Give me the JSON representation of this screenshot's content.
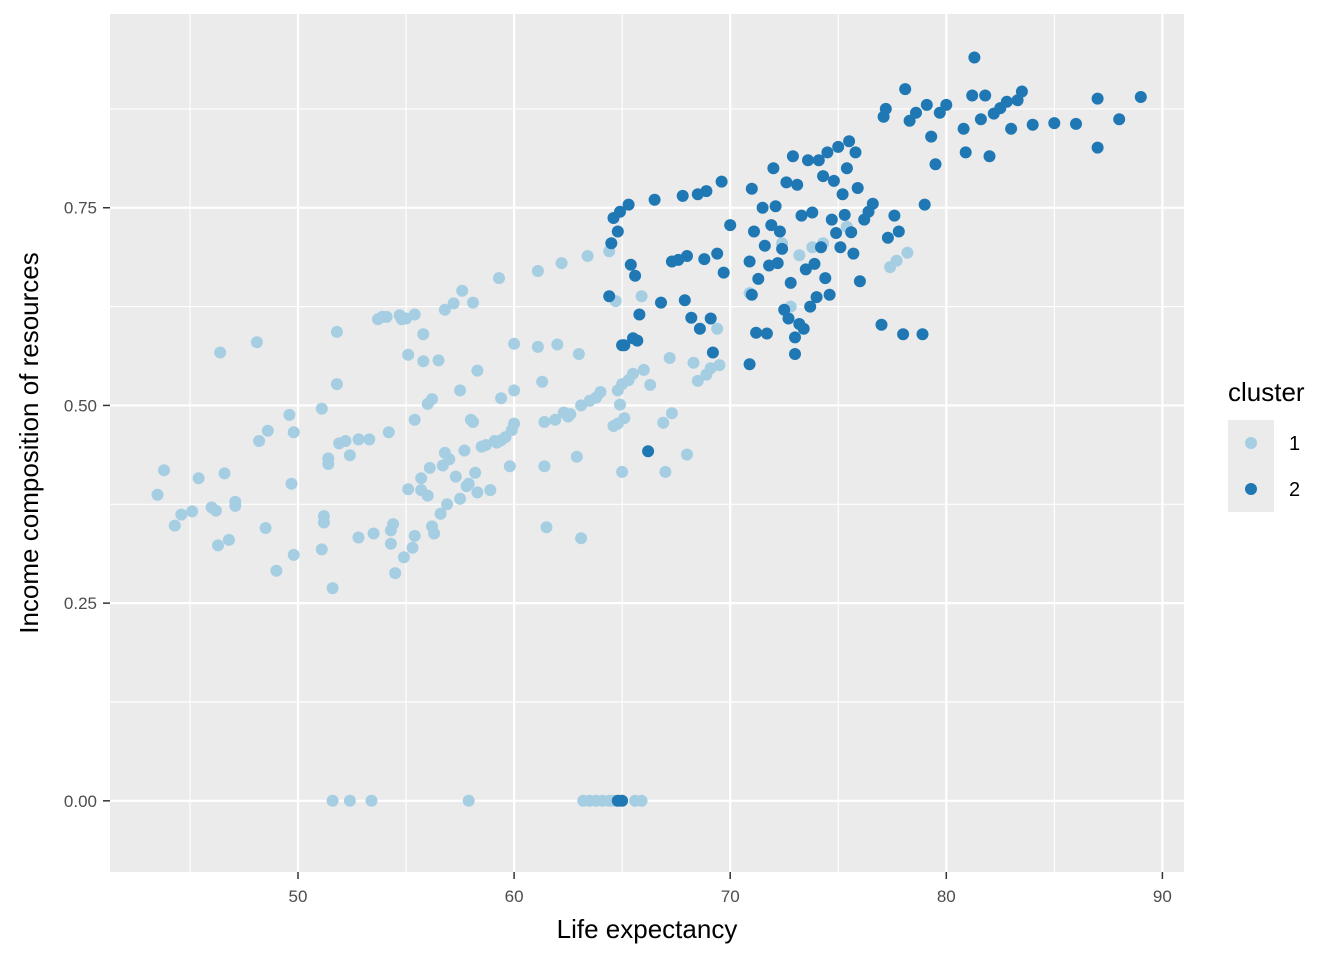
{
  "chart_data": {
    "type": "scatter",
    "title": "",
    "xlabel": "Life expectancy",
    "ylabel": "Income composition of resources",
    "xlim": [
      41.3,
      91.0
    ],
    "ylim": [
      -0.09,
      0.995
    ],
    "x_ticks": [
      50,
      60,
      70,
      80,
      90
    ],
    "x_tick_labels": [
      "50",
      "60",
      "70",
      "80",
      "90"
    ],
    "y_ticks": [
      0.0,
      0.25,
      0.5,
      0.75
    ],
    "y_tick_labels": [
      "0.00",
      "0.25",
      "0.50",
      "0.75"
    ],
    "grid": true,
    "legend": {
      "title": "cluster",
      "position": "right"
    },
    "colors": {
      "panel": "#ebebeb",
      "grid": "#ffffff",
      "cluster_1": "#a6cee3",
      "cluster_2": "#1f78b4"
    },
    "series": [
      {
        "name": "1",
        "color": "#a6cee3",
        "points": [
          [
            43.5,
            0.387
          ],
          [
            43.8,
            0.418
          ],
          [
            44.3,
            0.348
          ],
          [
            44.6,
            0.362
          ],
          [
            45.1,
            0.366
          ],
          [
            45.4,
            0.408
          ],
          [
            46.0,
            0.371
          ],
          [
            46.2,
            0.367
          ],
          [
            46.3,
            0.323
          ],
          [
            46.4,
            0.567
          ],
          [
            46.6,
            0.414
          ],
          [
            46.8,
            0.33
          ],
          [
            47.1,
            0.373
          ],
          [
            47.1,
            0.378
          ],
          [
            48.1,
            0.58
          ],
          [
            48.2,
            0.455
          ],
          [
            48.5,
            0.345
          ],
          [
            48.6,
            0.468
          ],
          [
            49.0,
            0.291
          ],
          [
            49.6,
            0.488
          ],
          [
            49.7,
            0.401
          ],
          [
            49.8,
            0.311
          ],
          [
            49.8,
            0.466
          ],
          [
            51.1,
            0.318
          ],
          [
            51.1,
            0.496
          ],
          [
            51.2,
            0.36
          ],
          [
            51.2,
            0.352
          ],
          [
            51.4,
            0.426
          ],
          [
            51.4,
            0.433
          ],
          [
            51.6,
            0.269
          ],
          [
            51.8,
            0.593
          ],
          [
            51.8,
            0.527
          ],
          [
            51.9,
            0.452
          ],
          [
            52.2,
            0.455
          ],
          [
            52.4,
            0.437
          ],
          [
            52.8,
            0.333
          ],
          [
            52.8,
            0.457
          ],
          [
            53.3,
            0.457
          ],
          [
            53.5,
            0.338
          ],
          [
            53.7,
            0.609
          ],
          [
            53.9,
            0.612
          ],
          [
            54.1,
            0.612
          ],
          [
            54.2,
            0.466
          ],
          [
            54.3,
            0.342
          ],
          [
            54.3,
            0.325
          ],
          [
            54.4,
            0.35
          ],
          [
            54.5,
            0.288
          ],
          [
            54.7,
            0.614
          ],
          [
            54.8,
            0.609
          ],
          [
            54.9,
            0.308
          ],
          [
            55.0,
            0.61
          ],
          [
            55.1,
            0.564
          ],
          [
            55.1,
            0.394
          ],
          [
            55.3,
            0.32
          ],
          [
            55.4,
            0.482
          ],
          [
            55.4,
            0.335
          ],
          [
            55.4,
            0.615
          ],
          [
            55.7,
            0.408
          ],
          [
            55.7,
            0.393
          ],
          [
            55.8,
            0.59
          ],
          [
            55.8,
            0.556
          ],
          [
            56.0,
            0.502
          ],
          [
            56.0,
            0.386
          ],
          [
            56.1,
            0.421
          ],
          [
            56.2,
            0.347
          ],
          [
            56.2,
            0.508
          ],
          [
            56.3,
            0.338
          ],
          [
            56.5,
            0.557
          ],
          [
            56.6,
            0.363
          ],
          [
            56.7,
            0.424
          ],
          [
            56.8,
            0.44
          ],
          [
            56.8,
            0.621
          ],
          [
            56.9,
            0.375
          ],
          [
            57.0,
            0.432
          ],
          [
            57.2,
            0.629
          ],
          [
            57.3,
            0.41
          ],
          [
            57.5,
            0.519
          ],
          [
            57.5,
            0.382
          ],
          [
            57.6,
            0.645
          ],
          [
            57.7,
            0.443
          ],
          [
            57.8,
            0.398
          ],
          [
            57.9,
            0.401
          ],
          [
            58.0,
            0.482
          ],
          [
            58.1,
            0.63
          ],
          [
            58.1,
            0.479
          ],
          [
            58.2,
            0.415
          ],
          [
            58.3,
            0.544
          ],
          [
            58.3,
            0.39
          ],
          [
            58.5,
            0.448
          ],
          [
            58.7,
            0.45
          ],
          [
            58.9,
            0.393
          ],
          [
            59.1,
            0.455
          ],
          [
            59.2,
            0.453
          ],
          [
            59.3,
            0.661
          ],
          [
            59.4,
            0.456
          ],
          [
            59.4,
            0.509
          ],
          [
            59.6,
            0.46
          ],
          [
            59.8,
            0.423
          ],
          [
            59.9,
            0.469
          ],
          [
            60.0,
            0.477
          ],
          [
            60.0,
            0.578
          ],
          [
            60.0,
            0.519
          ],
          [
            61.1,
            0.574
          ],
          [
            61.1,
            0.67
          ],
          [
            61.3,
            0.53
          ],
          [
            61.4,
            0.423
          ],
          [
            61.4,
            0.479
          ],
          [
            61.5,
            0.346
          ],
          [
            61.9,
            0.482
          ],
          [
            62.0,
            0.577
          ],
          [
            62.2,
            0.68
          ],
          [
            62.3,
            0.491
          ],
          [
            62.5,
            0.486
          ],
          [
            62.6,
            0.489
          ],
          [
            62.9,
            0.435
          ],
          [
            63.0,
            0.565
          ],
          [
            63.1,
            0.332
          ],
          [
            63.1,
            0.5
          ],
          [
            63.4,
            0.689
          ],
          [
            63.5,
            0.506
          ],
          [
            63.8,
            0.51
          ],
          [
            64.0,
            0.517
          ],
          [
            64.4,
            0.695
          ],
          [
            64.6,
            0.474
          ],
          [
            64.7,
            0.632
          ],
          [
            64.8,
            0.519
          ],
          [
            64.8,
            0.477
          ],
          [
            64.9,
            0.501
          ],
          [
            65.0,
            0.527
          ],
          [
            65.0,
            0.416
          ],
          [
            65.1,
            0.484
          ],
          [
            65.3,
            0.532
          ],
          [
            65.5,
            0.54
          ],
          [
            65.9,
            0.638
          ],
          [
            66.0,
            0.545
          ],
          [
            66.3,
            0.526
          ],
          [
            66.9,
            0.478
          ],
          [
            67.0,
            0.416
          ],
          [
            67.2,
            0.56
          ],
          [
            67.3,
            0.49
          ],
          [
            68.0,
            0.438
          ],
          [
            68.3,
            0.554
          ],
          [
            68.5,
            0.531
          ],
          [
            68.9,
            0.539
          ],
          [
            69.1,
            0.547
          ],
          [
            69.4,
            0.597
          ],
          [
            69.5,
            0.551
          ],
          [
            70.9,
            0.642
          ],
          [
            72.4,
            0.705
          ],
          [
            72.8,
            0.625
          ],
          [
            73.2,
            0.69
          ],
          [
            73.8,
            0.7
          ],
          [
            74.3,
            0.705
          ],
          [
            75.4,
            0.726
          ],
          [
            77.4,
            0.675
          ],
          [
            77.7,
            0.683
          ],
          [
            78.2,
            0.693
          ],
          [
            51.6,
            0.0
          ],
          [
            52.4,
            0.0
          ],
          [
            53.4,
            0.0
          ],
          [
            57.9,
            0.0
          ],
          [
            63.2,
            0.0
          ],
          [
            63.5,
            0.0
          ],
          [
            63.8,
            0.0
          ],
          [
            64.1,
            0.0
          ],
          [
            64.4,
            0.0
          ],
          [
            64.6,
            0.0
          ],
          [
            65.6,
            0.0
          ],
          [
            65.9,
            0.0
          ]
        ]
      },
      {
        "name": "2",
        "color": "#1f78b4",
        "points": [
          [
            64.4,
            0.638
          ],
          [
            64.5,
            0.705
          ],
          [
            64.6,
            0.737
          ],
          [
            64.8,
            0.72
          ],
          [
            64.9,
            0.745
          ],
          [
            65.0,
            0.576
          ],
          [
            65.1,
            0.576
          ],
          [
            65.3,
            0.754
          ],
          [
            65.4,
            0.678
          ],
          [
            65.5,
            0.585
          ],
          [
            65.6,
            0.664
          ],
          [
            65.7,
            0.582
          ],
          [
            65.8,
            0.615
          ],
          [
            66.2,
            0.442
          ],
          [
            66.5,
            0.76
          ],
          [
            66.8,
            0.63
          ],
          [
            67.3,
            0.682
          ],
          [
            67.6,
            0.684
          ],
          [
            67.8,
            0.765
          ],
          [
            67.9,
            0.633
          ],
          [
            68.0,
            0.689
          ],
          [
            68.2,
            0.611
          ],
          [
            68.5,
            0.767
          ],
          [
            68.6,
            0.597
          ],
          [
            68.8,
            0.685
          ],
          [
            68.9,
            0.771
          ],
          [
            69.1,
            0.61
          ],
          [
            69.2,
            0.567
          ],
          [
            69.4,
            0.692
          ],
          [
            69.6,
            0.783
          ],
          [
            69.7,
            0.668
          ],
          [
            70.0,
            0.728
          ],
          [
            70.9,
            0.552
          ],
          [
            70.9,
            0.682
          ],
          [
            71.0,
            0.774
          ],
          [
            71.0,
            0.64
          ],
          [
            71.1,
            0.72
          ],
          [
            71.2,
            0.592
          ],
          [
            71.3,
            0.66
          ],
          [
            71.5,
            0.75
          ],
          [
            71.6,
            0.702
          ],
          [
            71.7,
            0.591
          ],
          [
            71.8,
            0.677
          ],
          [
            71.9,
            0.728
          ],
          [
            72.0,
            0.8
          ],
          [
            72.1,
            0.752
          ],
          [
            72.2,
            0.68
          ],
          [
            72.3,
            0.72
          ],
          [
            72.4,
            0.698
          ],
          [
            72.5,
            0.621
          ],
          [
            72.6,
            0.782
          ],
          [
            72.7,
            0.61
          ],
          [
            72.8,
            0.655
          ],
          [
            72.9,
            0.815
          ],
          [
            73.0,
            0.586
          ],
          [
            73.0,
            0.565
          ],
          [
            73.1,
            0.779
          ],
          [
            73.2,
            0.603
          ],
          [
            73.3,
            0.74
          ],
          [
            73.4,
            0.597
          ],
          [
            73.5,
            0.672
          ],
          [
            73.6,
            0.81
          ],
          [
            73.7,
            0.625
          ],
          [
            73.8,
            0.744
          ],
          [
            73.9,
            0.679
          ],
          [
            74.0,
            0.637
          ],
          [
            74.1,
            0.81
          ],
          [
            74.2,
            0.7
          ],
          [
            74.3,
            0.79
          ],
          [
            74.4,
            0.661
          ],
          [
            74.5,
            0.82
          ],
          [
            74.6,
            0.64
          ],
          [
            74.7,
            0.735
          ],
          [
            74.8,
            0.784
          ],
          [
            74.9,
            0.718
          ],
          [
            75.0,
            0.827
          ],
          [
            75.1,
            0.7
          ],
          [
            75.2,
            0.767
          ],
          [
            75.3,
            0.741
          ],
          [
            75.4,
            0.8
          ],
          [
            75.5,
            0.834
          ],
          [
            75.6,
            0.719
          ],
          [
            75.7,
            0.692
          ],
          [
            75.8,
            0.82
          ],
          [
            75.9,
            0.775
          ],
          [
            76.0,
            0.657
          ],
          [
            76.2,
            0.735
          ],
          [
            76.4,
            0.745
          ],
          [
            76.6,
            0.755
          ],
          [
            77.0,
            0.602
          ],
          [
            77.1,
            0.865
          ],
          [
            77.2,
            0.875
          ],
          [
            77.3,
            0.712
          ],
          [
            77.6,
            0.74
          ],
          [
            77.8,
            0.72
          ],
          [
            78.0,
            0.59
          ],
          [
            78.1,
            0.9
          ],
          [
            78.3,
            0.86
          ],
          [
            78.6,
            0.87
          ],
          [
            78.9,
            0.59
          ],
          [
            79.0,
            0.754
          ],
          [
            79.1,
            0.88
          ],
          [
            79.3,
            0.84
          ],
          [
            79.5,
            0.805
          ],
          [
            79.7,
            0.87
          ],
          [
            80.0,
            0.88
          ],
          [
            80.8,
            0.85
          ],
          [
            80.9,
            0.82
          ],
          [
            81.2,
            0.892
          ],
          [
            81.3,
            0.94
          ],
          [
            81.6,
            0.862
          ],
          [
            81.8,
            0.892
          ],
          [
            82.0,
            0.815
          ],
          [
            82.2,
            0.869
          ],
          [
            82.5,
            0.876
          ],
          [
            82.8,
            0.884
          ],
          [
            83.0,
            0.85
          ],
          [
            83.3,
            0.886
          ],
          [
            83.5,
            0.897
          ],
          [
            84.0,
            0.855
          ],
          [
            85.0,
            0.857
          ],
          [
            86.0,
            0.856
          ],
          [
            87.0,
            0.826
          ],
          [
            87.0,
            0.888
          ],
          [
            88.0,
            0.862
          ],
          [
            89.0,
            0.89
          ],
          [
            64.8,
            0.0
          ],
          [
            65.0,
            0.0
          ]
        ]
      }
    ]
  }
}
